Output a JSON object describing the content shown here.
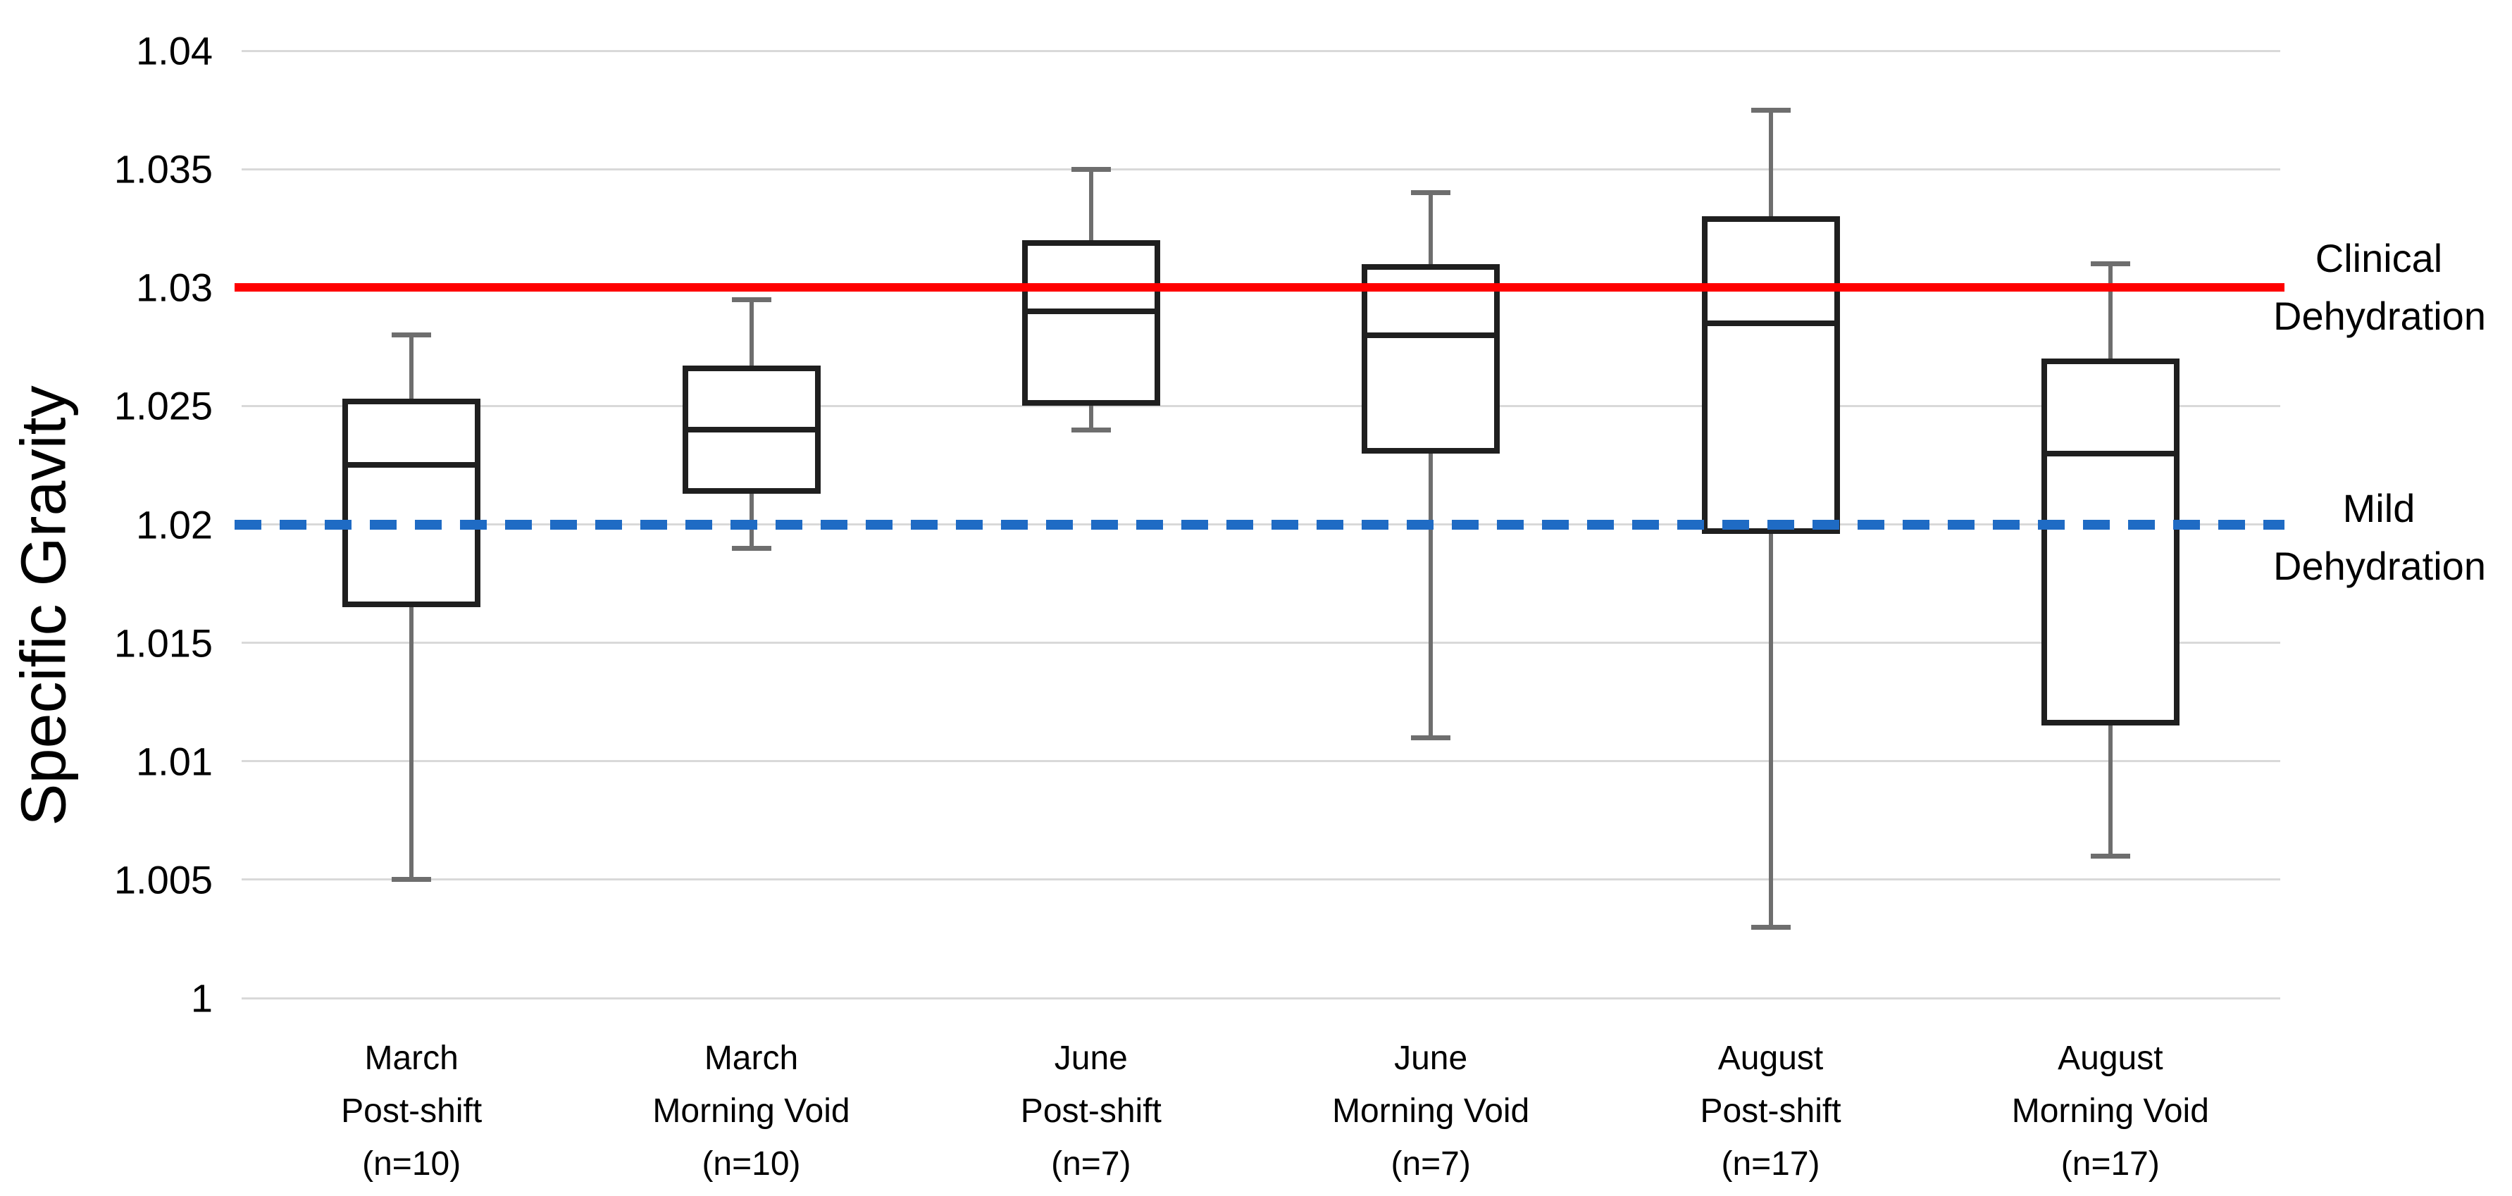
{
  "chart_data": {
    "type": "boxplot",
    "title": "",
    "ylabel": "Specific Gravity",
    "xlabel": "",
    "grid": true,
    "background": "#ffffff",
    "y_axis": {
      "min": 1.0,
      "max": 1.04,
      "step": 0.005,
      "ticks": [
        {
          "value": 1.0,
          "label": "1"
        },
        {
          "value": 1.005,
          "label": "1.005"
        },
        {
          "value": 1.01,
          "label": "1.01"
        },
        {
          "value": 1.015,
          "label": "1.015"
        },
        {
          "value": 1.02,
          "label": "1.02"
        },
        {
          "value": 1.025,
          "label": "1.025"
        },
        {
          "value": 1.03,
          "label": "1.03"
        },
        {
          "value": 1.035,
          "label": "1.035"
        },
        {
          "value": 1.04,
          "label": "1.04"
        }
      ]
    },
    "categories": [
      {
        "lines": [
          "March",
          "Post-shift",
          "(n=10)"
        ]
      },
      {
        "lines": [
          "March",
          "Morning Void",
          "(n=10)"
        ]
      },
      {
        "lines": [
          "June",
          "Post-shift",
          "(n=7)"
        ]
      },
      {
        "lines": [
          "June",
          "Morning Void",
          "(n=7)"
        ]
      },
      {
        "lines": [
          "August",
          "Post-shift",
          "(n=17)"
        ]
      },
      {
        "lines": [
          "August",
          "Morning Void",
          "(n=17)"
        ]
      }
    ],
    "boxes": [
      {
        "name": "march-post-shift",
        "whisker_low": 1.005,
        "q1": 1.0165,
        "median": 1.0225,
        "q3": 1.0253,
        "whisker_high": 1.028
      },
      {
        "name": "march-morning-void",
        "whisker_low": 1.019,
        "q1": 1.0213,
        "median": 1.024,
        "q3": 1.0267,
        "whisker_high": 1.0295
      },
      {
        "name": "june-post-shift",
        "whisker_low": 1.024,
        "q1": 1.025,
        "median": 1.029,
        "q3": 1.032,
        "whisker_high": 1.035
      },
      {
        "name": "june-morning-void",
        "whisker_low": 1.011,
        "q1": 1.023,
        "median": 1.028,
        "q3": 1.031,
        "whisker_high": 1.034
      },
      {
        "name": "august-post-shift",
        "whisker_low": 1.003,
        "q1": 1.0196,
        "median": 1.0285,
        "q3": 1.033,
        "whisker_high": 1.0375
      },
      {
        "name": "august-morning-void",
        "whisker_low": 1.006,
        "q1": 1.0115,
        "median": 1.023,
        "q3": 1.027,
        "whisker_high": 1.031
      }
    ],
    "reference_lines": [
      {
        "name": "clinical-dehydration",
        "value": 1.03,
        "style": "solid",
        "color": "#fe0000",
        "label_lines": [
          "Clinical",
          "Dehydration"
        ]
      },
      {
        "name": "mild-dehydration",
        "value": 1.02,
        "style": "dashed",
        "color": "#1f6bc4",
        "label_lines": [
          "Mild",
          "Dehydration"
        ]
      }
    ],
    "colors": {
      "box_border": "#1f1f1f",
      "box_fill": "#ffffff",
      "whisker": "#6e6e6e",
      "gridline": "#d9d9d9",
      "text": "#000000",
      "clinical_line": "#fe0000",
      "mild_line": "#1f6bc4"
    },
    "legend_position": "none"
  }
}
